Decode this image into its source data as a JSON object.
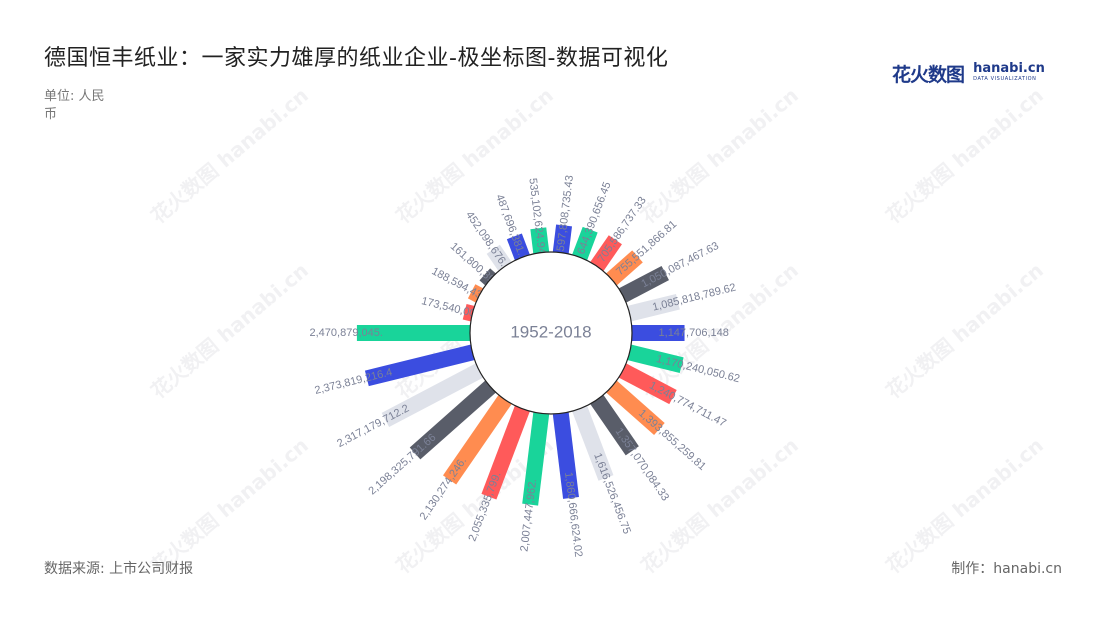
{
  "title": "德国恒丰纸业：一家实力雄厚的纸业企业-极坐标图-数据可视化",
  "unit": "单位: 人民币",
  "source": "数据来源: 上市公司财报",
  "credit": "制作：hanabi.cn",
  "logo": {
    "cn": "花火数图",
    "en": "hanabi.cn",
    "sub": "DATA VISUALIZATION",
    "icon": "hanabi-logo-icon"
  },
  "watermark": {
    "cn": "花火数图",
    "en": "hanabi.cn"
  },
  "colors": {
    "palette": [
      "#3b4de0",
      "#19d49a",
      "#ff5a5a",
      "#ff8c50",
      "#595d69",
      "#dfe2ea"
    ],
    "label": "#7b8196"
  },
  "chart_data": {
    "type": "bar",
    "subtype": "polar-radial-bar",
    "center_label": "1952-2018",
    "series": [
      {
        "values": [
          597808735.43,
          644390656.45,
          705586737.33,
          755551866.81,
          1050087467.63,
          1085818789.62,
          1147706148,
          1170240050.62,
          1240774711.47,
          1393855259.81,
          1357070084.33,
          1616526456.75,
          1860666624.02,
          2007447962.0,
          2055335799.0,
          2130274246.0,
          2198325791.66,
          2317179712.2,
          2373819216.4,
          2470879045.0,
          173540008.6,
          188594437.5,
          161800395.4,
          452098676.2,
          487696381.1,
          535102624.94
        ],
        "labels": [
          "597,808,735.43",
          "644,390,656.45",
          "705,586,737.33",
          "755,551,866.81",
          "1,050,087,467.63",
          "1,085,818,789.62",
          "1,147,706,148",
          "1,170,240,050.62",
          "1,240,774,711.47",
          "1,393,855,259.81",
          "1,357,070,084.33",
          "1,616,526,456.75",
          "1,860,666,624.02",
          "2,007,447,962.",
          "2,055,335,799.",
          "2,130,274,246.",
          "2,198,325,791.66",
          "2,317,179,712.2",
          "2,373,819,216.4",
          "2,470,879,045.",
          "173,540,008.6",
          "188,594,437.5",
          "161,800,395.4",
          "452,098,676.2",
          "487,696,381.1",
          "535,102,624.94"
        ]
      }
    ]
  }
}
